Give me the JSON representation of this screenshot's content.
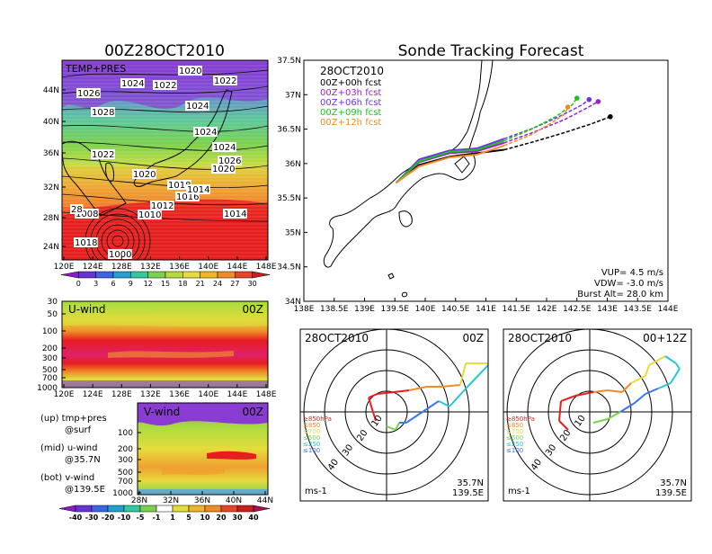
{
  "colors": {
    "purple": "#8a3cd2",
    "blue": "#3c78e6",
    "cyan": "#23c8d2",
    "green": "#78d250",
    "yellow": "#e6dc3c",
    "orange": "#f08c28",
    "red": "#e61e1e",
    "magenta": "#c8148c",
    "fc00": "#000000",
    "fc03": "#a01ec8",
    "fc06": "#6e32e6",
    "fc09": "#14c814",
    "fc12": "#f08c28"
  },
  "panel_tp": {
    "title": "00Z28OCT2010",
    "label": "TEMP+PRES",
    "y_ticks": [
      "44N",
      "40N",
      "36N",
      "32N",
      "28N",
      "24N"
    ],
    "x_ticks": [
      "120E",
      "124E",
      "128E",
      "132E",
      "136E",
      "140E",
      "144E",
      "148E"
    ],
    "pressure_labels": [
      "1020",
      "1024",
      "1022",
      "1022",
      "1026",
      "1024",
      "1028",
      "1024",
      "1024",
      "1022",
      "1026",
      "1020",
      "1020",
      "1018",
      "1016",
      "1012",
      "1014",
      "1010",
      "1014",
      "1008",
      "1018",
      "28",
      "1000"
    ],
    "colorbar": {
      "ticks": [
        "0",
        "3",
        "6",
        "9",
        "12",
        "15",
        "18",
        "21",
        "24",
        "27",
        "30"
      ]
    }
  },
  "panel_u": {
    "label": "U-wind",
    "time": "00Z",
    "y_ticks": [
      "30",
      "50",
      "100",
      "200",
      "300",
      "500",
      "700",
      "1000"
    ],
    "x_ticks": [
      "120E",
      "124E",
      "128E",
      "132E",
      "136E",
      "140E",
      "144E",
      "148E"
    ]
  },
  "panel_v": {
    "label": "V-wind",
    "time": "00Z",
    "y_ticks": [
      "100",
      "200",
      "300",
      "500",
      "700",
      "1000"
    ],
    "x_ticks": [
      "28N",
      "32N",
      "36N",
      "40N",
      "44N"
    ],
    "colorbar": {
      "ticks": [
        "-40",
        "-30",
        "-20",
        "-10",
        "-5",
        "-1",
        "1",
        "5",
        "10",
        "20",
        "30",
        "40"
      ]
    }
  },
  "legend_text": {
    "up1": "(up) tmp+pres",
    "up2": "@surf",
    "mid1": "(mid) u-wind",
    "mid2": "@35.7N",
    "bot1": "(bot) v-wind",
    "bot2": "@139.5E"
  },
  "tracking": {
    "title": "Sonde Tracking Forecast",
    "date": "28OCT2010",
    "legend": [
      "00Z+00h fcst",
      "00Z+03h fcst",
      "00Z+06h fcst",
      "00Z+09h fcst",
      "00Z+12h fcst"
    ],
    "y_ticks": [
      "37.5N",
      "37N",
      "36.5N",
      "36N",
      "35.5N",
      "35N",
      "34.5N",
      "34N"
    ],
    "x_ticks": [
      "138E",
      "138.5E",
      "139E",
      "139.5E",
      "140E",
      "140.5E",
      "141E",
      "141.5E",
      "142E",
      "142.5E",
      "143E",
      "143.5E",
      "144E"
    ],
    "vup": "VUP= 4.5 m/s",
    "vdw": "VDW= -3.0 m/s",
    "burst": "Burst Alt= 28.0 km"
  },
  "hodo_left": {
    "date": "28OCT2010",
    "time": "00Z",
    "lat": "35.7N",
    "lon": "139.5E",
    "unit": "ms-1",
    "ring_labels": [
      "10",
      "20",
      "30",
      "40"
    ],
    "levels": [
      "≥850hPa",
      "≤850",
      "≤700",
      "≤500",
      "≤250",
      "≤100"
    ]
  },
  "hodo_right": {
    "date": "28OCT2010",
    "time": "00+12Z",
    "lat": "35.7N",
    "lon": "139.5E",
    "unit": "ms-1",
    "ring_labels": [
      "10",
      "20",
      "30",
      "40"
    ],
    "levels": [
      "≥850hPa",
      "≤850",
      "≤700",
      "≤500",
      "≤250",
      "≤100"
    ]
  },
  "chart_data": [
    {
      "type": "line",
      "title": "Sonde Tracking Forecast",
      "xlabel": "",
      "ylabel": "",
      "xlim": [
        138,
        144
      ],
      "ylim": [
        34,
        37.5
      ],
      "series": [
        {
          "name": "00Z+00h fcst",
          "x": [
            139.52,
            139.9,
            140.4,
            140.85,
            141.3,
            141.8,
            142.3,
            142.75,
            143.05
          ],
          "y": [
            35.72,
            35.98,
            36.1,
            36.15,
            36.2,
            36.32,
            36.45,
            36.58,
            36.68
          ]
        },
        {
          "name": "00Z+03h fcst",
          "x": [
            139.52,
            139.9,
            140.4,
            140.85,
            141.3,
            141.8,
            142.3,
            142.65,
            142.85
          ],
          "y": [
            35.72,
            36.02,
            36.15,
            36.18,
            36.3,
            36.46,
            36.64,
            36.8,
            36.9
          ]
        },
        {
          "name": "00Z+06h fcst",
          "x": [
            139.52,
            139.9,
            140.4,
            140.85,
            141.3,
            141.8,
            142.25,
            142.58,
            142.7
          ],
          "y": [
            35.72,
            36.06,
            36.19,
            36.22,
            36.36,
            36.52,
            36.7,
            36.85,
            36.93
          ]
        },
        {
          "name": "00Z+09h fcst",
          "x": [
            139.52,
            139.9,
            140.4,
            140.85,
            141.3,
            141.75,
            142.15,
            142.42,
            142.5
          ],
          "y": [
            35.72,
            36.03,
            36.17,
            36.2,
            36.33,
            36.5,
            36.68,
            36.85,
            36.95
          ]
        },
        {
          "name": "00Z+12h fcst",
          "x": [
            139.52,
            139.9,
            140.4,
            140.85,
            141.3,
            141.75,
            142.1,
            142.3,
            142.35
          ],
          "y": [
            35.72,
            35.96,
            36.09,
            36.13,
            36.26,
            36.42,
            36.6,
            36.72,
            36.82
          ]
        }
      ],
      "annotations": [
        "VUP= 4.5 m/s",
        "VDW= -3.0 m/s",
        "Burst Alt= 28.0 km"
      ]
    },
    {
      "type": "heatmap",
      "title": "00Z28OCT2010",
      "xlabel": "",
      "ylabel": "",
      "xlim": [
        120,
        150
      ],
      "ylim": [
        22,
        47
      ],
      "colorbar_ticks": [
        0,
        3,
        6,
        9,
        12,
        15,
        18,
        21,
        24,
        27,
        30
      ]
    },
    {
      "type": "heatmap",
      "title": "U-wind",
      "xlim": [
        120,
        150
      ],
      "ylim": [
        1000,
        30
      ],
      "y_ticks": [
        30,
        50,
        100,
        200,
        300,
        500,
        700,
        1000
      ]
    },
    {
      "type": "heatmap",
      "title": "V-wind",
      "xlim": [
        28,
        44
      ],
      "ylim": [
        1000,
        100
      ],
      "colorbar_ticks": [
        -40,
        -30,
        -20,
        -10,
        -5,
        -1,
        1,
        5,
        10,
        20,
        30,
        40
      ]
    }
  ]
}
